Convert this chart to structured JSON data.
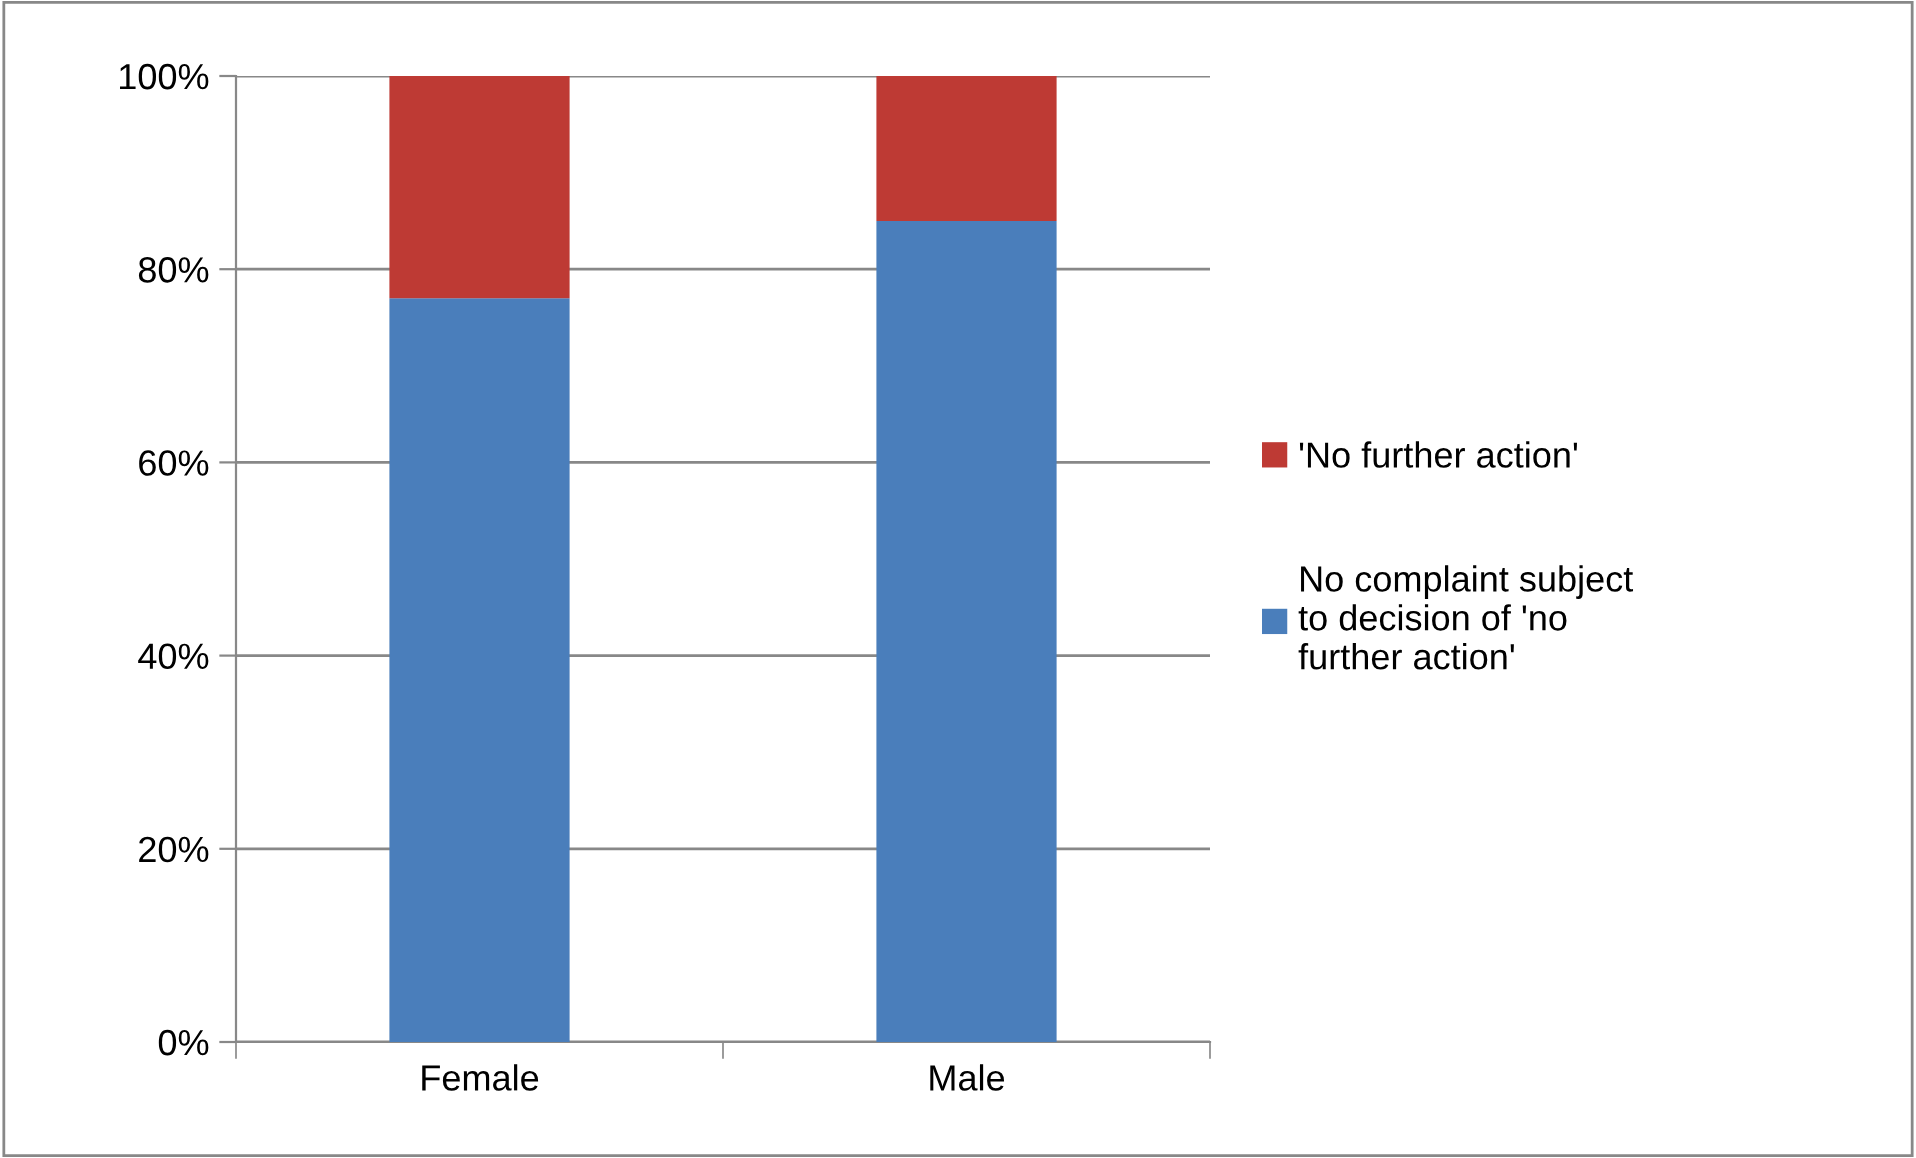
{
  "chart_data": {
    "type": "bar",
    "stacked": true,
    "categories": [
      "Female",
      "Male"
    ],
    "series": [
      {
        "name": "No complaint subject to decision of 'no further action'",
        "color": "#4a7ebb",
        "values": [
          77,
          85
        ]
      },
      {
        "name": "'No further action'",
        "color": "#be3a34",
        "values": [
          23,
          15
        ]
      }
    ],
    "ylim": [
      0,
      100
    ],
    "yticks": [
      {
        "value": 0,
        "label": "0%"
      },
      {
        "value": 20,
        "label": "20%"
      },
      {
        "value": 40,
        "label": "40%"
      },
      {
        "value": 60,
        "label": "60%"
      },
      {
        "value": 80,
        "label": "80%"
      },
      {
        "value": 100,
        "label": "100%"
      }
    ],
    "grid": "y",
    "legend": "right"
  }
}
